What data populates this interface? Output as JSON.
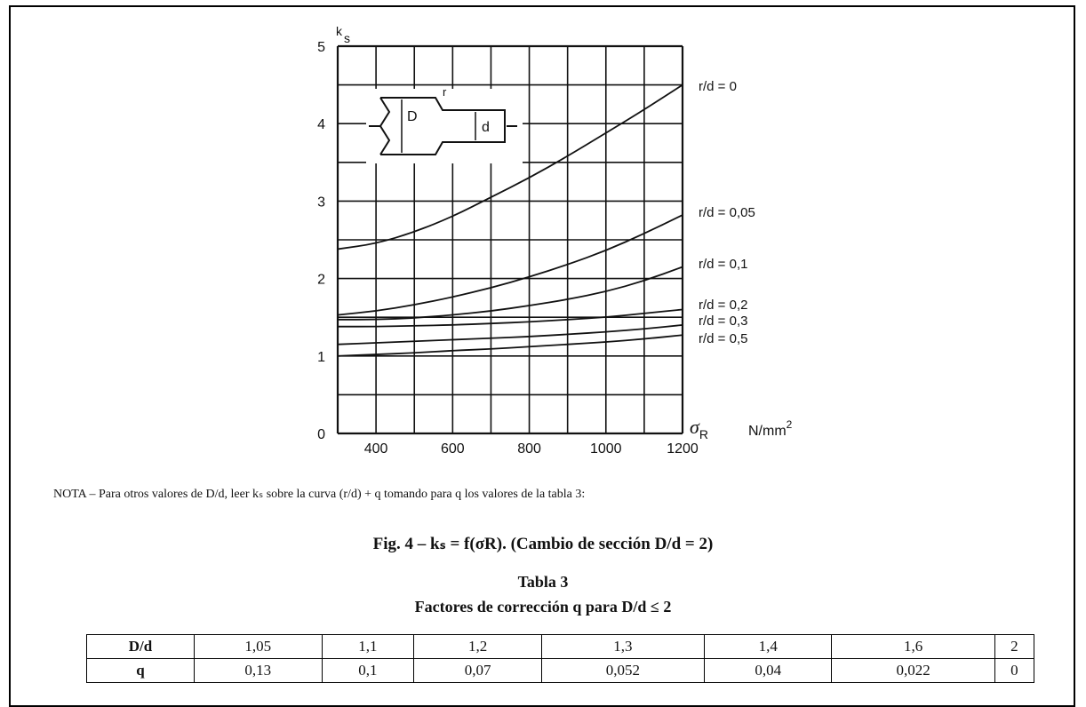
{
  "chart_data": {
    "type": "line",
    "y_axis_label": "k",
    "y_axis_label_sub": "s",
    "x_axis_label_symbol": "σ",
    "x_axis_label_sub": "R",
    "x_unit": "N/mm",
    "x_unit_sup": "2",
    "xlim": [
      300,
      1200
    ],
    "ylim": [
      0,
      5
    ],
    "x_ticks": [
      400,
      600,
      800,
      1000,
      1200
    ],
    "x_tick_labels": [
      "400",
      "600",
      "800",
      "1000",
      "1200"
    ],
    "y_ticks": [
      0,
      1,
      2,
      3,
      4,
      5
    ],
    "y_tick_labels": [
      "0",
      "1",
      "2",
      "3",
      "4",
      "5"
    ],
    "grid": true,
    "x_grid_step": 100,
    "y_grid_step": 0.5,
    "series": [
      {
        "name": "r/d = 0",
        "x": [
          300,
          400,
          500,
          600,
          700,
          800,
          900,
          1000,
          1100,
          1200
        ],
        "y": [
          2.38,
          2.45,
          2.6,
          2.8,
          3.05,
          3.3,
          3.58,
          3.88,
          4.18,
          4.5
        ]
      },
      {
        "name": "r/d =  0,05",
        "x": [
          300,
          400,
          500,
          600,
          700,
          800,
          900,
          1000,
          1100,
          1200
        ],
        "y": [
          1.53,
          1.58,
          1.66,
          1.76,
          1.88,
          2.02,
          2.18,
          2.36,
          2.58,
          2.82
        ]
      },
      {
        "name": "r/d =  0,1",
        "x": [
          300,
          400,
          500,
          600,
          700,
          800,
          900,
          1000,
          1100,
          1200
        ],
        "y": [
          1.47,
          1.47,
          1.49,
          1.53,
          1.58,
          1.65,
          1.73,
          1.83,
          1.97,
          2.15
        ]
      },
      {
        "name": "r/d  =  0,2",
        "x": [
          300,
          400,
          500,
          600,
          700,
          800,
          900,
          1000,
          1100,
          1200
        ],
        "y": [
          1.38,
          1.38,
          1.39,
          1.4,
          1.42,
          1.44,
          1.47,
          1.5,
          1.55,
          1.6
        ]
      },
      {
        "name": "r/d  =  0,3",
        "x": [
          300,
          400,
          500,
          600,
          700,
          800,
          900,
          1000,
          1100,
          1200
        ],
        "y": [
          1.15,
          1.17,
          1.19,
          1.21,
          1.23,
          1.25,
          1.28,
          1.31,
          1.35,
          1.4
        ]
      },
      {
        "name": "r/d  =  0,5",
        "x": [
          300,
          400,
          500,
          600,
          700,
          800,
          900,
          1000,
          1100,
          1200
        ],
        "y": [
          1.0,
          1.02,
          1.04,
          1.07,
          1.09,
          1.12,
          1.15,
          1.18,
          1.22,
          1.27
        ]
      }
    ]
  },
  "inset": {
    "D": "D",
    "d": "d",
    "r": "r"
  },
  "note": "NOTA  –  Para otros valores de D/d, leer kₛ sobre la curva (r/d) + q tomando para q los valores de la tabla 3:",
  "caption": "Fig. 4 – kₛ = f(σR). (Cambio de sección D/d = 2)",
  "table": {
    "title": "Tabla 3",
    "subtitle": "Factores de corrección q para D/d ≤ 2",
    "rows": [
      [
        "D/d",
        "1,05",
        "1,1",
        "1,2",
        "1,3",
        "1,4",
        "1,6",
        "2"
      ],
      [
        "q",
        "0,13",
        "0,1",
        "0,07",
        "0,052",
        "0,04",
        "0,022",
        "0"
      ]
    ]
  }
}
